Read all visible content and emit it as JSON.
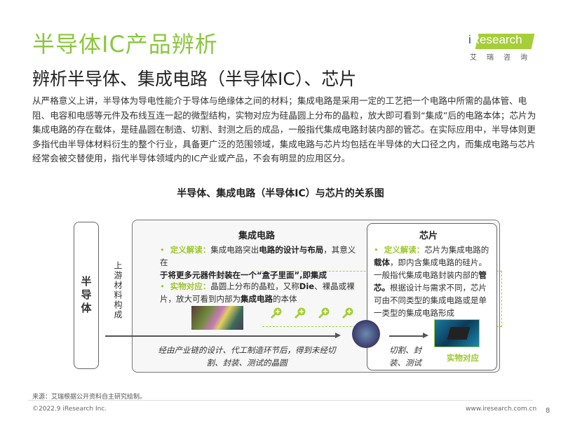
{
  "header": {
    "title": "半导体IC产品辨析",
    "subtitle": "辨析半导体、集成电路（半导体IC）、芯片"
  },
  "logo": {
    "word_i": "i",
    "word_rest": "Research",
    "cn": "艾瑞咨询",
    "accent": "#a6ce39"
  },
  "paragraph": "从严格意义上讲，半导体为导电性能介于导体与绝缘体之间的材料；集成电路是采用一定的工艺把一个电路中所需的晶体管、电阻、电容和电感等元件及布线互连一起的微型结构，实物对应为硅晶圆上分布的晶粒，放大即可看到“集成”后的电路本体；芯片为集成电路的存在载体，是硅晶圆在制造、切割、封测之后的成品，一般指代集成电路封装内部的管芯。在实际应用中，半导体则更多指代由半导体材料衍生的整个行业，具备更广泛的范围领域，集成电路与芯片均包括在半导体的大口径之内，而集成电路与芯片经常会被交替使用，指代半导体领域内的IC产业或产品，不会有明显的应用区分。",
  "diagram": {
    "title": "半导体、集成电路（半导体IC）与芯片的关系图",
    "left_label": "半导体",
    "upstream_label": "上游材料构成",
    "ic": {
      "heading": "集成电路",
      "def_label": "定义解读：",
      "def_a": "集成电路突出",
      "def_b": "电路的设计与布局",
      "def_c": "，其意义在",
      "def_d": "于将更多元器件封装在一个“盒子里面”,即集成",
      "phys_label": "实物对应：",
      "phys_a": "晶圆上分布的晶粒，又称",
      "phys_b": "Die",
      "phys_c": "、裸晶或裸片，放大可看到内部为",
      "phys_d": "集成电路",
      "phys_e": "的本体",
      "process": "经由产业链的设计、代工制造环节后，得到未经切割、封装、测试的晶圆"
    },
    "chip": {
      "heading": "芯片",
      "def_label": "定义解读：",
      "def_a": "芯片为集成电路的",
      "def_b": "载体",
      "def_c": "，即内含集成电路的硅片。一般指代集成电路封装内部的",
      "def_d": "管芯。",
      "def_e": "根据设计与需求不同，芯片可由不同类型的集成电路或是单一类型的集成电路形成",
      "process": "切割、封装、测试",
      "phys_caption": "实物对应"
    }
  },
  "footer": {
    "source": "来源：艾瑞根据公开资料自主研究绘制。",
    "copyright": "©2022.9 iResearch Inc.",
    "url": "www.iresearch.com.cn",
    "page": "8"
  }
}
